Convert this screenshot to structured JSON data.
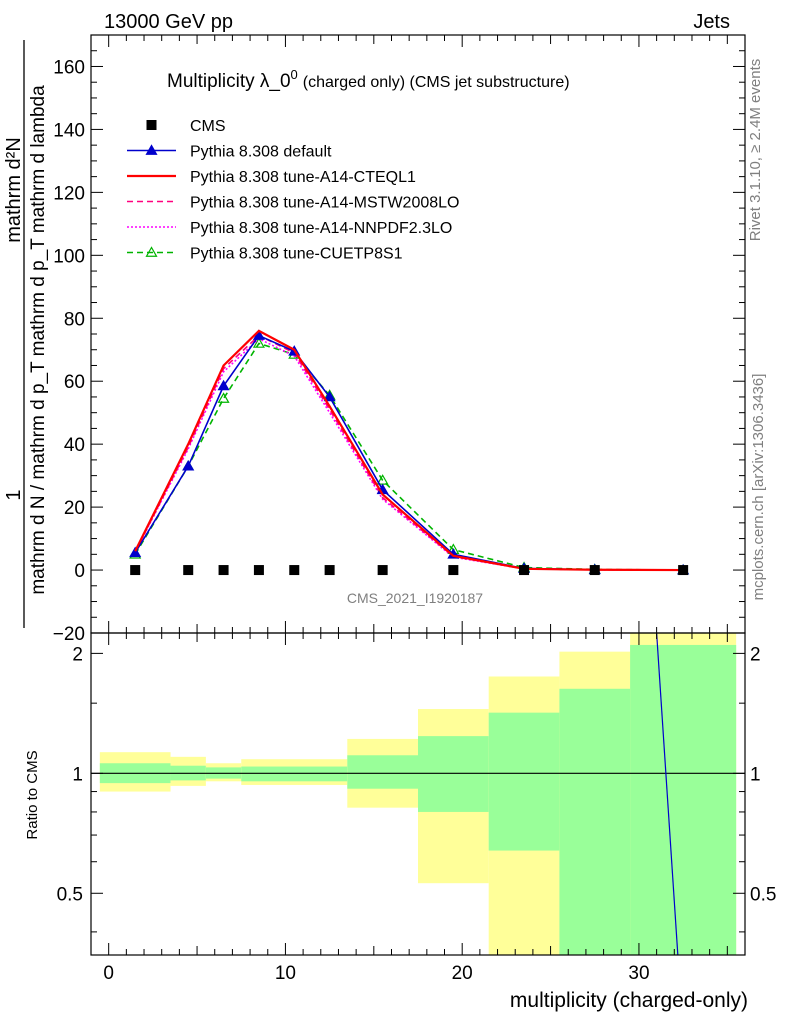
{
  "header": {
    "left": "13000 GeV pp",
    "right": "Jets"
  },
  "side_labels": {
    "rivet": "Rivet 3.1.10, ≥ 2.4M events",
    "mcplots": "mcplots.cern.ch [arXiv:1306.3436]"
  },
  "watermark": "CMS_2021_I1920187",
  "chart_data": {
    "type": "line",
    "title_main": "Multiplicity λ_0",
    "title_sup": "0",
    "title_rest": "(charged only) (CMS jet substructure)",
    "xlabel": "multiplicity (charged-only)",
    "ylabel_top": "1",
    "ylabel_bottom": "mathrm d N / mathrm d p_T mathrm d p_T mathrm d lambda",
    "ylabel_numerator": "mathrm d²N",
    "ratio_ylabel": "Ratio to CMS",
    "xlim": [
      -1,
      36
    ],
    "ylim": [
      -20,
      170
    ],
    "ratio_ylim": [
      0.35,
      2.25
    ],
    "x_ticks": [
      "0",
      "10",
      "20",
      "30"
    ],
    "y_ticks": [
      "−20",
      "0",
      "20",
      "40",
      "60",
      "80",
      "100",
      "120",
      "140",
      "160"
    ],
    "ratio_ticks": [
      "0.5",
      "1",
      "2"
    ],
    "x": [
      1.5,
      4.5,
      6.5,
      8.5,
      10.5,
      12.5,
      15.5,
      19.5,
      23.5,
      27.5,
      32.5
    ],
    "cms": [
      0,
      0,
      0,
      0,
      0,
      0,
      0,
      0,
      0,
      0,
      0
    ],
    "series": [
      {
        "name": "Pythia 8.308 default",
        "color": "#0000cc",
        "style": "solid",
        "marker": "triangle-filled",
        "values": [
          5.5,
          33,
          58.5,
          74.5,
          69.5,
          55,
          25.5,
          5,
          0.5,
          0.1,
          0
        ]
      },
      {
        "name": "Pythia 8.308 tune-A14-CTEQL1",
        "color": "#ff0000",
        "style": "solid",
        "marker": "none",
        "values": [
          6,
          40,
          65,
          76,
          70,
          52,
          24,
          4.5,
          0.4,
          0.1,
          0
        ]
      },
      {
        "name": "Pythia 8.308 tune-A14-MSTW2008LO",
        "color": "#ff007f",
        "style": "dashed",
        "marker": "none",
        "values": [
          5.8,
          39,
          64,
          74.5,
          69,
          51,
          23,
          4.3,
          0.4,
          0.1,
          0
        ]
      },
      {
        "name": "Pythia 8.308 tune-A14-NNPDF2.3LO",
        "color": "#ff00ff",
        "style": "dotted",
        "marker": "none",
        "values": [
          5.7,
          38.5,
          63,
          73.5,
          68,
          50,
          22.5,
          4.1,
          0.4,
          0.1,
          0
        ]
      },
      {
        "name": "Pythia 8.308 tune-CUETP8S1",
        "color": "#00b400",
        "style": "dashed",
        "marker": "triangle-open",
        "values": [
          5,
          33,
          54.5,
          72,
          68.5,
          55.5,
          28.5,
          6.5,
          0.8,
          0.2,
          0
        ]
      }
    ],
    "cms_label": "CMS",
    "ratio_bands": [
      {
        "x0": -0.5,
        "x1": 3.5,
        "g_lo": 0.945,
        "g_hi": 1.06,
        "y_lo": 0.9,
        "y_hi": 1.13
      },
      {
        "x0": 3.5,
        "x1": 5.5,
        "g_lo": 0.96,
        "g_hi": 1.045,
        "y_lo": 0.93,
        "y_hi": 1.1
      },
      {
        "x0": 5.5,
        "x1": 7.5,
        "g_lo": 0.97,
        "g_hi": 1.035,
        "y_lo": 0.955,
        "y_hi": 1.06
      },
      {
        "x0": 7.5,
        "x1": 13.5,
        "g_lo": 0.955,
        "g_hi": 1.04,
        "y_lo": 0.935,
        "y_hi": 1.085
      },
      {
        "x0": 13.5,
        "x1": 17.5,
        "g_lo": 0.915,
        "g_hi": 1.11,
        "y_lo": 0.82,
        "y_hi": 1.22
      },
      {
        "x0": 17.5,
        "x1": 21.5,
        "g_lo": 0.8,
        "g_hi": 1.24,
        "y_lo": 0.53,
        "y_hi": 1.45
      },
      {
        "x0": 21.5,
        "x1": 25.5,
        "g_lo": 0.64,
        "g_hi": 1.42,
        "y_lo": 0.35,
        "y_hi": 1.75
      },
      {
        "x0": 25.5,
        "x1": 29.5,
        "g_lo": 0.35,
        "g_hi": 1.63,
        "y_lo": 0.35,
        "y_hi": 2.02
      },
      {
        "x0": 29.5,
        "x1": 35.5,
        "g_lo": 0.35,
        "g_hi": 2.1,
        "y_lo": 0.35,
        "y_hi": 2.25
      }
    ],
    "ratio_line": {
      "x": [
        31.0,
        32.2
      ],
      "y": [
        2.25,
        0.35
      ],
      "color": "#0000cc"
    },
    "band_colors": {
      "green": "#99ff99",
      "yellow": "#ffff99"
    }
  }
}
